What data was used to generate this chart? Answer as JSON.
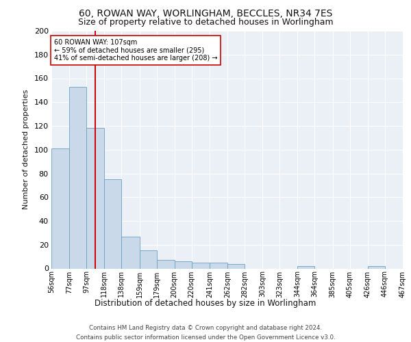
{
  "title1": "60, ROWAN WAY, WORLINGHAM, BECCLES, NR34 7ES",
  "title2": "Size of property relative to detached houses in Worlingham",
  "xlabel": "Distribution of detached houses by size in Worlingham",
  "ylabel": "Number of detached properties",
  "bar_edges": [
    56,
    77,
    97,
    118,
    138,
    159,
    179,
    200,
    220,
    241,
    262,
    282,
    303,
    323,
    344,
    364,
    385,
    405,
    426,
    446,
    467
  ],
  "bar_heights": [
    101,
    153,
    118,
    75,
    27,
    15,
    7,
    6,
    5,
    5,
    4,
    0,
    0,
    0,
    2,
    0,
    0,
    0,
    2,
    0
  ],
  "bar_color": "#c9d9ea",
  "bar_edge_color": "#6a9fc0",
  "bg_color": "#eaf0f6",
  "grid_color": "#ffffff",
  "vline_x": 107,
  "vline_color": "#cc0000",
  "annotation_text": "60 ROWAN WAY: 107sqm\n← 59% of detached houses are smaller (295)\n41% of semi-detached houses are larger (208) →",
  "annotation_box_color": "#ffffff",
  "annotation_box_edge": "#cc0000",
  "ylim": [
    0,
    200
  ],
  "yticks": [
    0,
    20,
    40,
    60,
    80,
    100,
    120,
    140,
    160,
    180,
    200
  ],
  "tick_labels": [
    "56sqm",
    "77sqm",
    "97sqm",
    "118sqm",
    "138sqm",
    "159sqm",
    "179sqm",
    "200sqm",
    "220sqm",
    "241sqm",
    "262sqm",
    "282sqm",
    "303sqm",
    "323sqm",
    "344sqm",
    "364sqm",
    "385sqm",
    "405sqm",
    "426sqm",
    "446sqm",
    "467sqm"
  ],
  "footer_text": "Contains HM Land Registry data © Crown copyright and database right 2024.\nContains public sector information licensed under the Open Government Licence v3.0.",
  "title1_fontsize": 10,
  "title2_fontsize": 9
}
